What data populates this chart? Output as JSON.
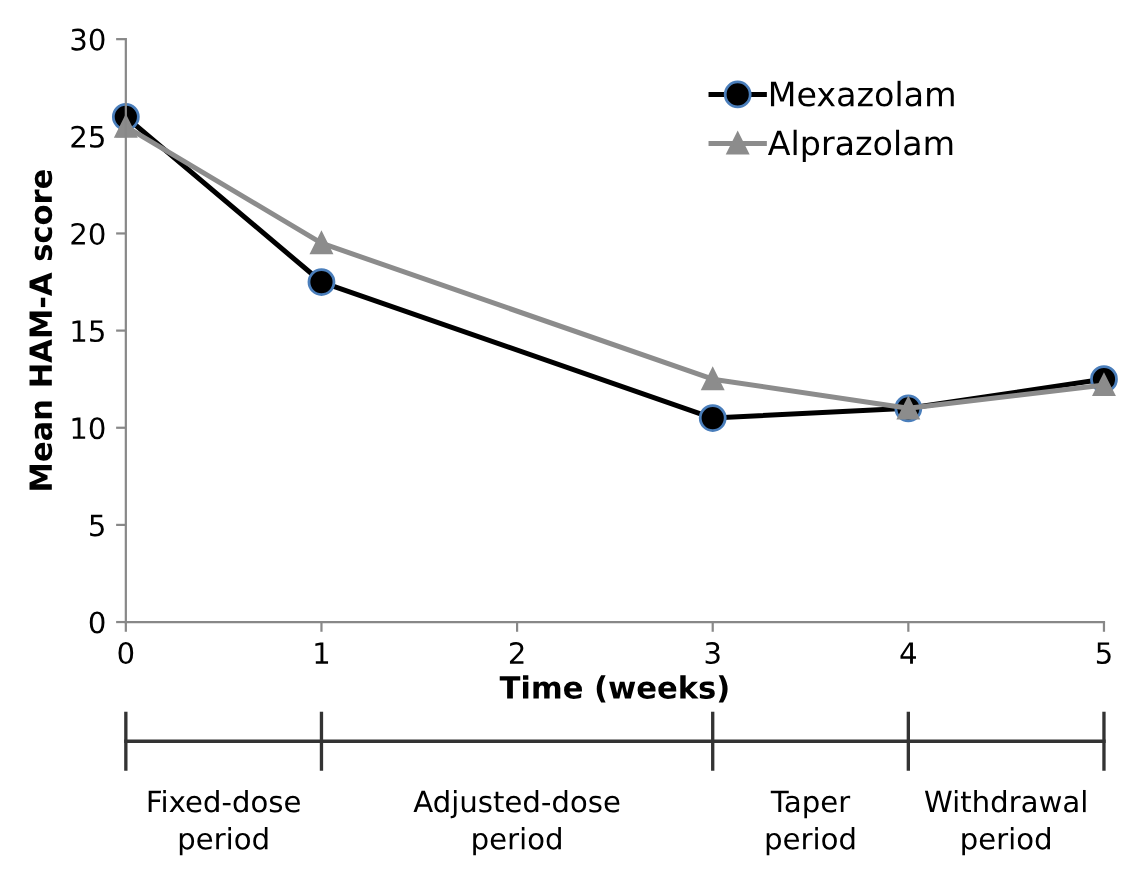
{
  "chart_data": {
    "type": "line",
    "xlabel": "Time (weeks)",
    "ylabel": "Mean HAM-A score",
    "x": [
      0,
      1,
      3,
      4,
      5
    ],
    "series": [
      {
        "name": "Mexazolam",
        "color": "#000000",
        "marker": "circle",
        "values": [
          26,
          17.5,
          10.5,
          11,
          12.5
        ]
      },
      {
        "name": "Alprazolam",
        "color": "#8c8c8c",
        "marker": "triangle",
        "values": [
          25.5,
          19.5,
          12.5,
          11,
          12.2
        ]
      }
    ],
    "xlim": [
      0,
      5
    ],
    "xticks": [
      0,
      1,
      2,
      3,
      4,
      5
    ],
    "ylim": [
      0,
      30
    ],
    "yticks": [
      0,
      5,
      10,
      15,
      20,
      25,
      30
    ],
    "grid": false,
    "legend": "top right",
    "annotations": [
      "Fixed-dose\nperiod",
      "Adjusted-dose\nperiod",
      "Taper\nperiod",
      "Withdrawal\nperiod"
    ]
  }
}
